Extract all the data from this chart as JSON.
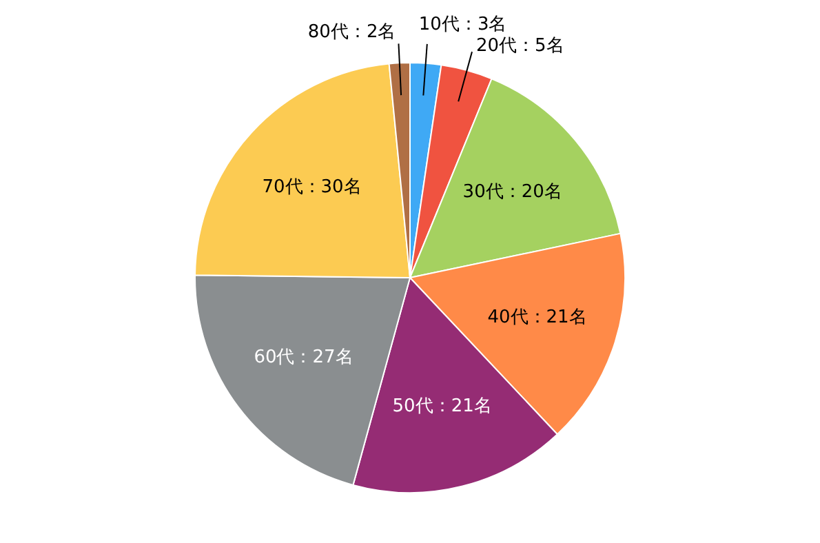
{
  "chart_data": {
    "type": "pie",
    "categories": [
      "10代",
      "20代",
      "30代",
      "40代",
      "50代",
      "60代",
      "70代",
      "80代"
    ],
    "values": [
      3,
      5,
      20,
      21,
      21,
      27,
      30,
      2
    ],
    "value_labels": [
      "：3名",
      "：5名",
      "：20名",
      "：21名",
      "：21名",
      "：27名",
      "：30名",
      "：2名"
    ],
    "colors": [
      "#3fa9f5",
      "#f05340",
      "#a5d160",
      "#ff8a48",
      "#952c74",
      "#8a8e90",
      "#fccb52",
      "#b06f45"
    ],
    "data_labels": true,
    "legend": false
  }
}
